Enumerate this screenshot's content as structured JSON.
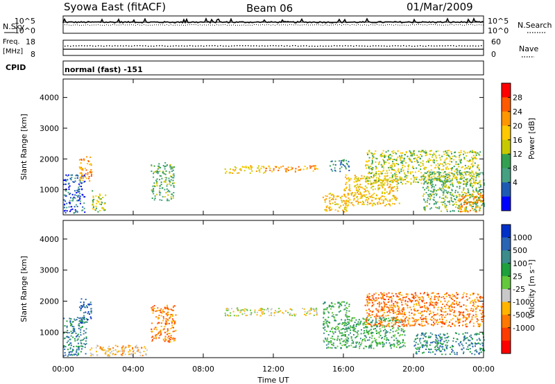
{
  "header": {
    "station": "Syowa East (fitACF)",
    "beam": "Beam 06",
    "date": "01/Mar/2009"
  },
  "strip_labels": {
    "nsky": "N.Sky",
    "nsearch": "N.Search",
    "freq_line1": "Freq.",
    "freq_line2": "[MHz]",
    "nave": "Nave",
    "cpid": "CPID",
    "cpid_value": "normal (fast) -151",
    "noise_ticks": [
      "10^5",
      "10^0"
    ],
    "freq_ticks": [
      "18",
      "8"
    ],
    "nave_ticks": [
      "60",
      "0"
    ]
  },
  "x_axis": {
    "label": "Time UT",
    "ticks": [
      "00:00",
      "04:00",
      "08:00",
      "12:00",
      "16:00",
      "20:00",
      "00:00"
    ],
    "range_hours": [
      0,
      24
    ]
  },
  "y_axis": {
    "label": "Slant Range [km]",
    "ticks": [
      "1000",
      "2000",
      "3000",
      "4000"
    ],
    "range_km": [
      180,
      4600
    ]
  },
  "chart_data": [
    {
      "type": "heatmap",
      "panel": "power",
      "ylabel": "Slant Range [km]",
      "xlabel": "",
      "xlim": [
        0,
        24
      ],
      "ylim": [
        180,
        4600
      ],
      "colorbar": {
        "label": "Power [dB]",
        "ticks": [
          "28",
          "24",
          "20",
          "16",
          "12",
          "8",
          "4"
        ],
        "colors": [
          "#ff0000",
          "#ff5a00",
          "#ff9600",
          "#ffc800",
          "#c8c800",
          "#32a050",
          "#46a082",
          "#1e5ab4",
          "#0000ff"
        ]
      },
      "regions": [
        {
          "t": [
            0.0,
            1.2
          ],
          "r": [
            250,
            1500
          ],
          "level": 7
        },
        {
          "t": [
            0.9,
            1.6
          ],
          "r": [
            1300,
            2100
          ],
          "level": 2
        },
        {
          "t": [
            1.6,
            2.4
          ],
          "r": [
            300,
            1000
          ],
          "level": 4
        },
        {
          "t": [
            5.0,
            6.3
          ],
          "r": [
            650,
            1900
          ],
          "level": 5
        },
        {
          "t": [
            9.2,
            11.5
          ],
          "r": [
            1550,
            1800
          ],
          "level": 3
        },
        {
          "t": [
            11.5,
            14.5
          ],
          "r": [
            1600,
            1800
          ],
          "level": 2
        },
        {
          "t": [
            14.8,
            16.2
          ],
          "r": [
            300,
            900
          ],
          "level": 3
        },
        {
          "t": [
            15.2,
            16.3
          ],
          "r": [
            1600,
            2000
          ],
          "level": 6
        },
        {
          "t": [
            16.0,
            19.2
          ],
          "r": [
            500,
            1500
          ],
          "level": 3
        },
        {
          "t": [
            17.2,
            23.8
          ],
          "r": [
            1200,
            2300
          ],
          "level": 4
        },
        {
          "t": [
            20.5,
            24.0
          ],
          "r": [
            300,
            1600
          ],
          "level": 5
        },
        {
          "t": [
            22.5,
            24.0
          ],
          "r": [
            300,
            900
          ],
          "level": 2
        }
      ]
    },
    {
      "type": "heatmap",
      "panel": "velocity",
      "ylabel": "Slant Range [km]",
      "xlabel": "Time UT",
      "xlim": [
        0,
        24
      ],
      "ylim": [
        180,
        4600
      ],
      "colorbar": {
        "label": "Velocity [m s⁻¹]",
        "ticks": [
          "1000",
          "500",
          "100",
          "25",
          "-25",
          "-100",
          "-500",
          "-1000"
        ],
        "colors": [
          "#0030c8",
          "#2a64b4",
          "#3c8c8c",
          "#1ea03c",
          "#64c83c",
          "#c8c8c8",
          "#ffb400",
          "#ff7800",
          "#ff3c00",
          "#ff0000"
        ]
      },
      "regions": [
        {
          "t": [
            0.0,
            1.3
          ],
          "r": [
            250,
            1500
          ],
          "level": 2
        },
        {
          "t": [
            0.9,
            1.6
          ],
          "r": [
            1300,
            2100
          ],
          "level": 1
        },
        {
          "t": [
            1.5,
            4.8
          ],
          "r": [
            250,
            600
          ],
          "level": 6
        },
        {
          "t": [
            5.0,
            6.4
          ],
          "r": [
            700,
            1900
          ],
          "level": 7
        },
        {
          "t": [
            9.2,
            14.5
          ],
          "r": [
            1550,
            1800
          ],
          "level": 5
        },
        {
          "t": [
            14.8,
            16.3
          ],
          "r": [
            500,
            2000
          ],
          "level": 3
        },
        {
          "t": [
            16.0,
            19.5
          ],
          "r": [
            500,
            1500
          ],
          "level": 3
        },
        {
          "t": [
            17.2,
            24.0
          ],
          "r": [
            1200,
            2300
          ],
          "level": 7
        },
        {
          "t": [
            20.0,
            24.0
          ],
          "r": [
            300,
            1000
          ],
          "level": 2
        }
      ]
    }
  ]
}
